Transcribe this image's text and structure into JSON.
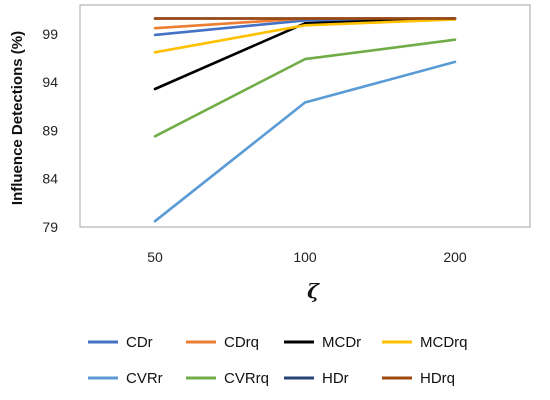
{
  "chart_data": {
    "type": "line",
    "title": "",
    "xlabel": "ζ",
    "ylabel": "Influence Detections (%)",
    "categories": [
      "50",
      "100",
      "200"
    ],
    "ylim": [
      79,
      102
    ],
    "yticks": [
      "79",
      "84",
      "89",
      "94",
      "99"
    ],
    "grid": false,
    "legend_position": "bottom",
    "series": [
      {
        "name": "CDr",
        "color": "#4472C4",
        "values": [
          98.9,
          100.4,
          100.6
        ]
      },
      {
        "name": "CDrq",
        "color": "#ED7D31",
        "values": [
          99.6,
          100.6,
          100.6
        ]
      },
      {
        "name": "MCDr",
        "color": "#000000",
        "values": [
          93.3,
          100.1,
          100.6
        ]
      },
      {
        "name": "MCDrq",
        "color": "#FFC000",
        "values": [
          97.1,
          99.9,
          100.5
        ]
      },
      {
        "name": "CVRr",
        "color": "#5B9BD5",
        "values": [
          79.6,
          91.9,
          96.1
        ]
      },
      {
        "name": "CVRrq",
        "color": "#70AD47",
        "values": [
          88.4,
          96.4,
          98.4
        ]
      },
      {
        "name": "HDr",
        "color": "#264478",
        "values": [
          100.6,
          100.6,
          100.6
        ]
      },
      {
        "name": "HDrq",
        "color": "#9E480E",
        "values": [
          100.6,
          100.6,
          100.6
        ]
      }
    ]
  }
}
